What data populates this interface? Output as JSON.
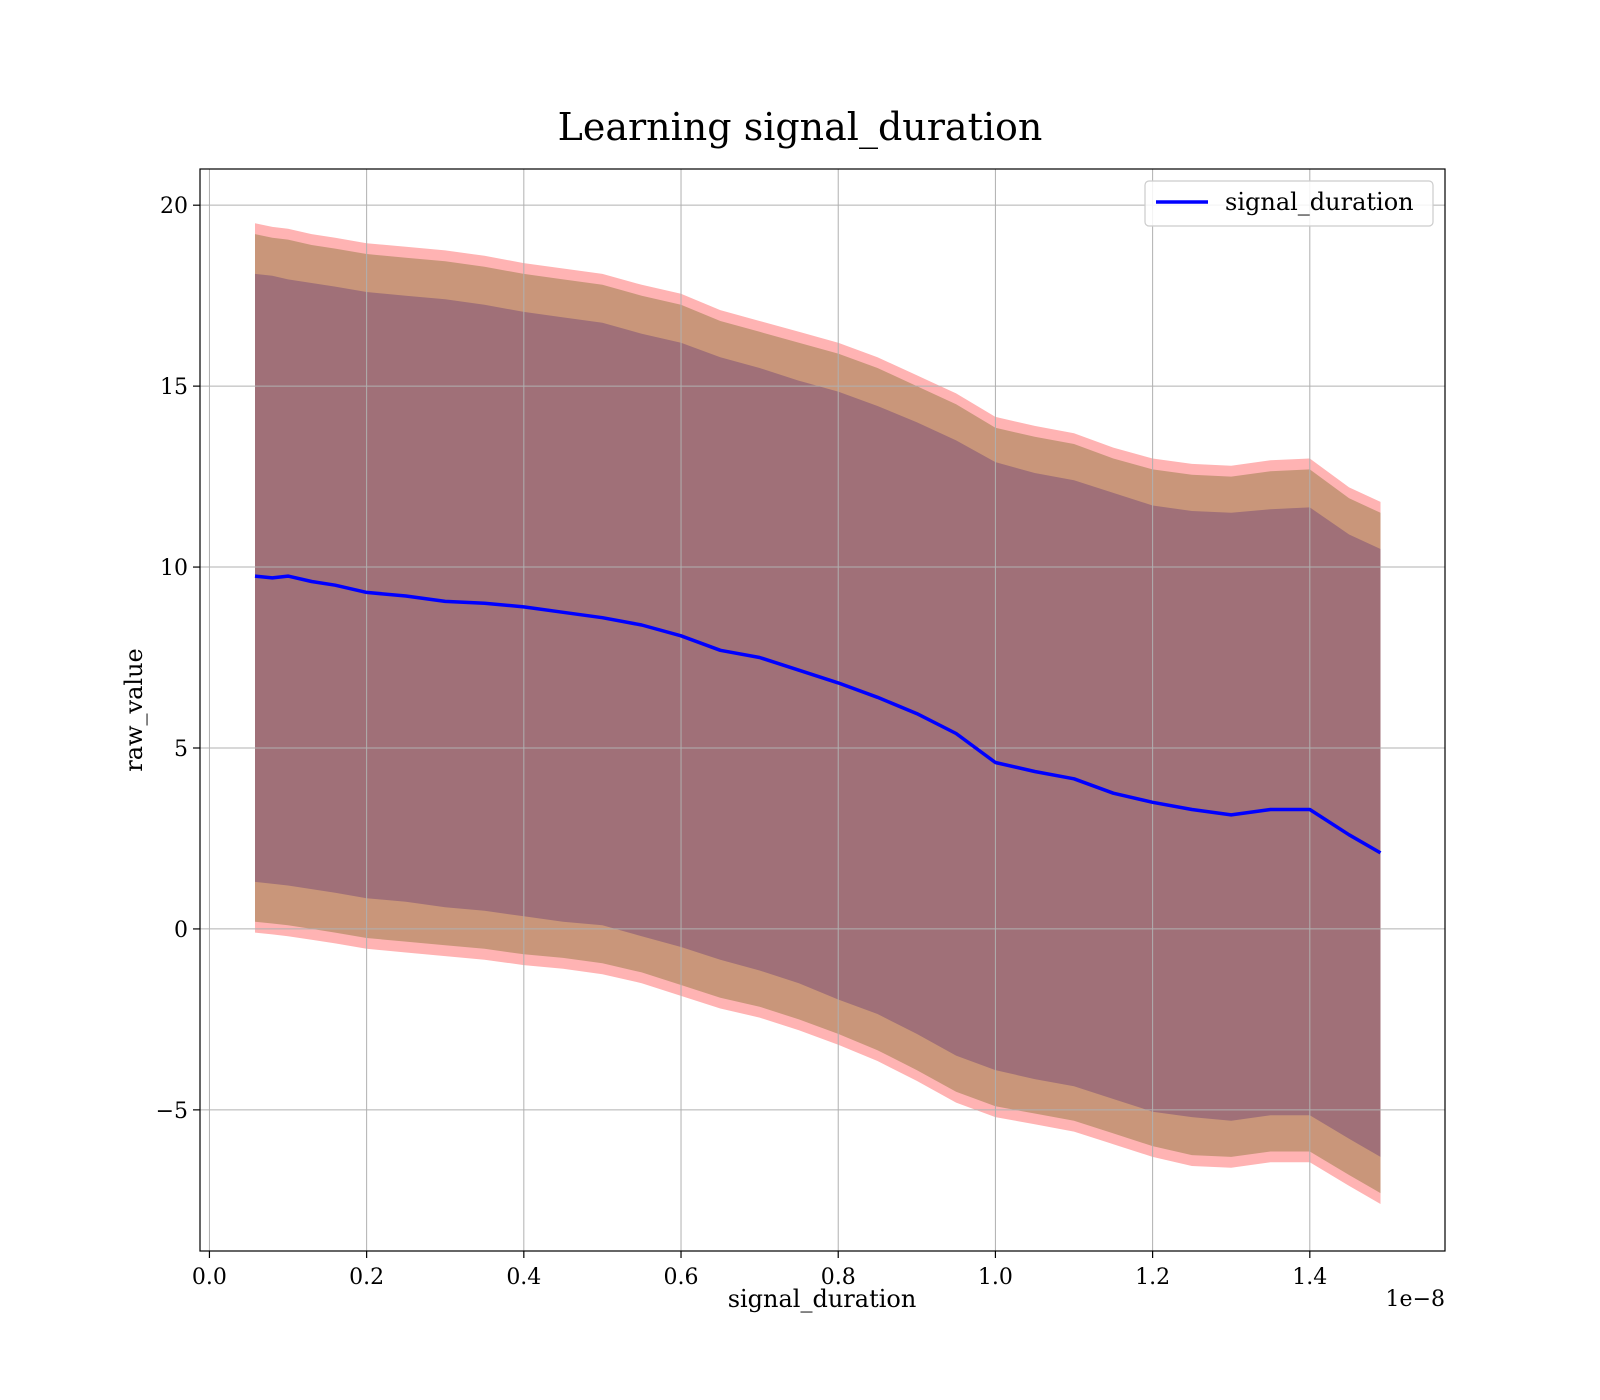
{
  "chart_data": {
    "type": "line",
    "title": "Learning signal_duration",
    "xlabel": "signal_duration",
    "ylabel": "raw_value",
    "x_offset_text": "1e−8",
    "xlim": [
      -0.012,
      1.572
    ],
    "ylim": [
      -8.9,
      21.0
    ],
    "x_ticks": [
      0.0,
      0.2,
      0.4,
      0.6,
      0.8,
      1.0,
      1.2,
      1.4
    ],
    "x_tick_labels": [
      "0.0",
      "0.2",
      "0.4",
      "0.6",
      "0.8",
      "1.0",
      "1.2",
      "1.4"
    ],
    "y_ticks": [
      -5,
      0,
      5,
      10,
      15,
      20
    ],
    "y_tick_labels": [
      "−5",
      "0",
      "5",
      "10",
      "15",
      "20"
    ],
    "grid": true,
    "legend": {
      "position": "top-right",
      "entries": [
        "signal_duration"
      ]
    },
    "colors": {
      "mean_line": "#0000ff",
      "band_outer": "#ffb3b3",
      "band_middle": "#c9967a",
      "band_inner": "#a07078"
    },
    "series": [
      {
        "name": "signal_duration",
        "x": [
          0.058,
          0.08,
          0.1,
          0.13,
          0.16,
          0.2,
          0.25,
          0.3,
          0.35,
          0.4,
          0.45,
          0.5,
          0.55,
          0.6,
          0.65,
          0.7,
          0.75,
          0.8,
          0.85,
          0.9,
          0.95,
          1.0,
          1.05,
          1.1,
          1.15,
          1.2,
          1.25,
          1.3,
          1.35,
          1.4,
          1.45,
          1.49
        ],
        "mean": [
          9.75,
          9.7,
          9.75,
          9.6,
          9.5,
          9.3,
          9.2,
          9.05,
          9.0,
          8.9,
          8.75,
          8.6,
          8.4,
          8.1,
          7.7,
          7.5,
          7.15,
          6.8,
          6.4,
          5.95,
          5.4,
          4.6,
          4.35,
          4.15,
          3.75,
          3.5,
          3.3,
          3.15,
          3.3,
          3.3,
          2.6,
          2.1
        ],
        "bands": [
          {
            "level": "outer",
            "upper": [
              19.5,
              19.4,
              19.35,
              19.2,
              19.1,
              18.95,
              18.85,
              18.75,
              18.6,
              18.4,
              18.25,
              18.1,
              17.8,
              17.55,
              17.1,
              16.8,
              16.5,
              16.2,
              15.8,
              15.3,
              14.8,
              14.15,
              13.9,
              13.7,
              13.3,
              13.0,
              12.85,
              12.8,
              12.95,
              13.0,
              12.2,
              11.8
            ],
            "lower": [
              -0.1,
              -0.15,
              -0.2,
              -0.3,
              -0.4,
              -0.55,
              -0.65,
              -0.75,
              -0.85,
              -1.0,
              -1.1,
              -1.25,
              -1.5,
              -1.85,
              -2.2,
              -2.45,
              -2.8,
              -3.2,
              -3.65,
              -4.2,
              -4.8,
              -5.2,
              -5.4,
              -5.6,
              -5.95,
              -6.3,
              -6.55,
              -6.6,
              -6.45,
              -6.45,
              -7.1,
              -7.6
            ]
          },
          {
            "level": "middle",
            "upper": [
              19.2,
              19.1,
              19.05,
              18.9,
              18.8,
              18.65,
              18.55,
              18.45,
              18.3,
              18.1,
              17.95,
              17.8,
              17.5,
              17.25,
              16.8,
              16.5,
              16.2,
              15.9,
              15.5,
              15.0,
              14.5,
              13.85,
              13.6,
              13.4,
              13.0,
              12.7,
              12.55,
              12.5,
              12.65,
              12.7,
              11.9,
              11.5
            ],
            "lower": [
              0.2,
              0.15,
              0.1,
              0.0,
              -0.1,
              -0.25,
              -0.35,
              -0.45,
              -0.55,
              -0.7,
              -0.8,
              -0.95,
              -1.2,
              -1.55,
              -1.9,
              -2.15,
              -2.5,
              -2.9,
              -3.35,
              -3.9,
              -4.5,
              -4.9,
              -5.1,
              -5.3,
              -5.65,
              -6.0,
              -6.25,
              -6.3,
              -6.15,
              -6.15,
              -6.8,
              -7.3
            ]
          },
          {
            "level": "inner",
            "upper": [
              18.1,
              18.05,
              17.95,
              17.85,
              17.75,
              17.6,
              17.5,
              17.4,
              17.25,
              17.05,
              16.9,
              16.75,
              16.45,
              16.2,
              15.8,
              15.5,
              15.15,
              14.85,
              14.45,
              14.0,
              13.5,
              12.9,
              12.6,
              12.4,
              12.05,
              11.7,
              11.55,
              11.5,
              11.6,
              11.65,
              10.9,
              10.5
            ],
            "lower": [
              1.3,
              1.25,
              1.2,
              1.1,
              1.0,
              0.85,
              0.75,
              0.6,
              0.5,
              0.35,
              0.2,
              0.1,
              -0.2,
              -0.5,
              -0.85,
              -1.15,
              -1.5,
              -1.95,
              -2.35,
              -2.9,
              -3.5,
              -3.9,
              -4.15,
              -4.35,
              -4.7,
              -5.05,
              -5.2,
              -5.3,
              -5.15,
              -5.15,
              -5.8,
              -6.3
            ]
          }
        ]
      }
    ]
  }
}
